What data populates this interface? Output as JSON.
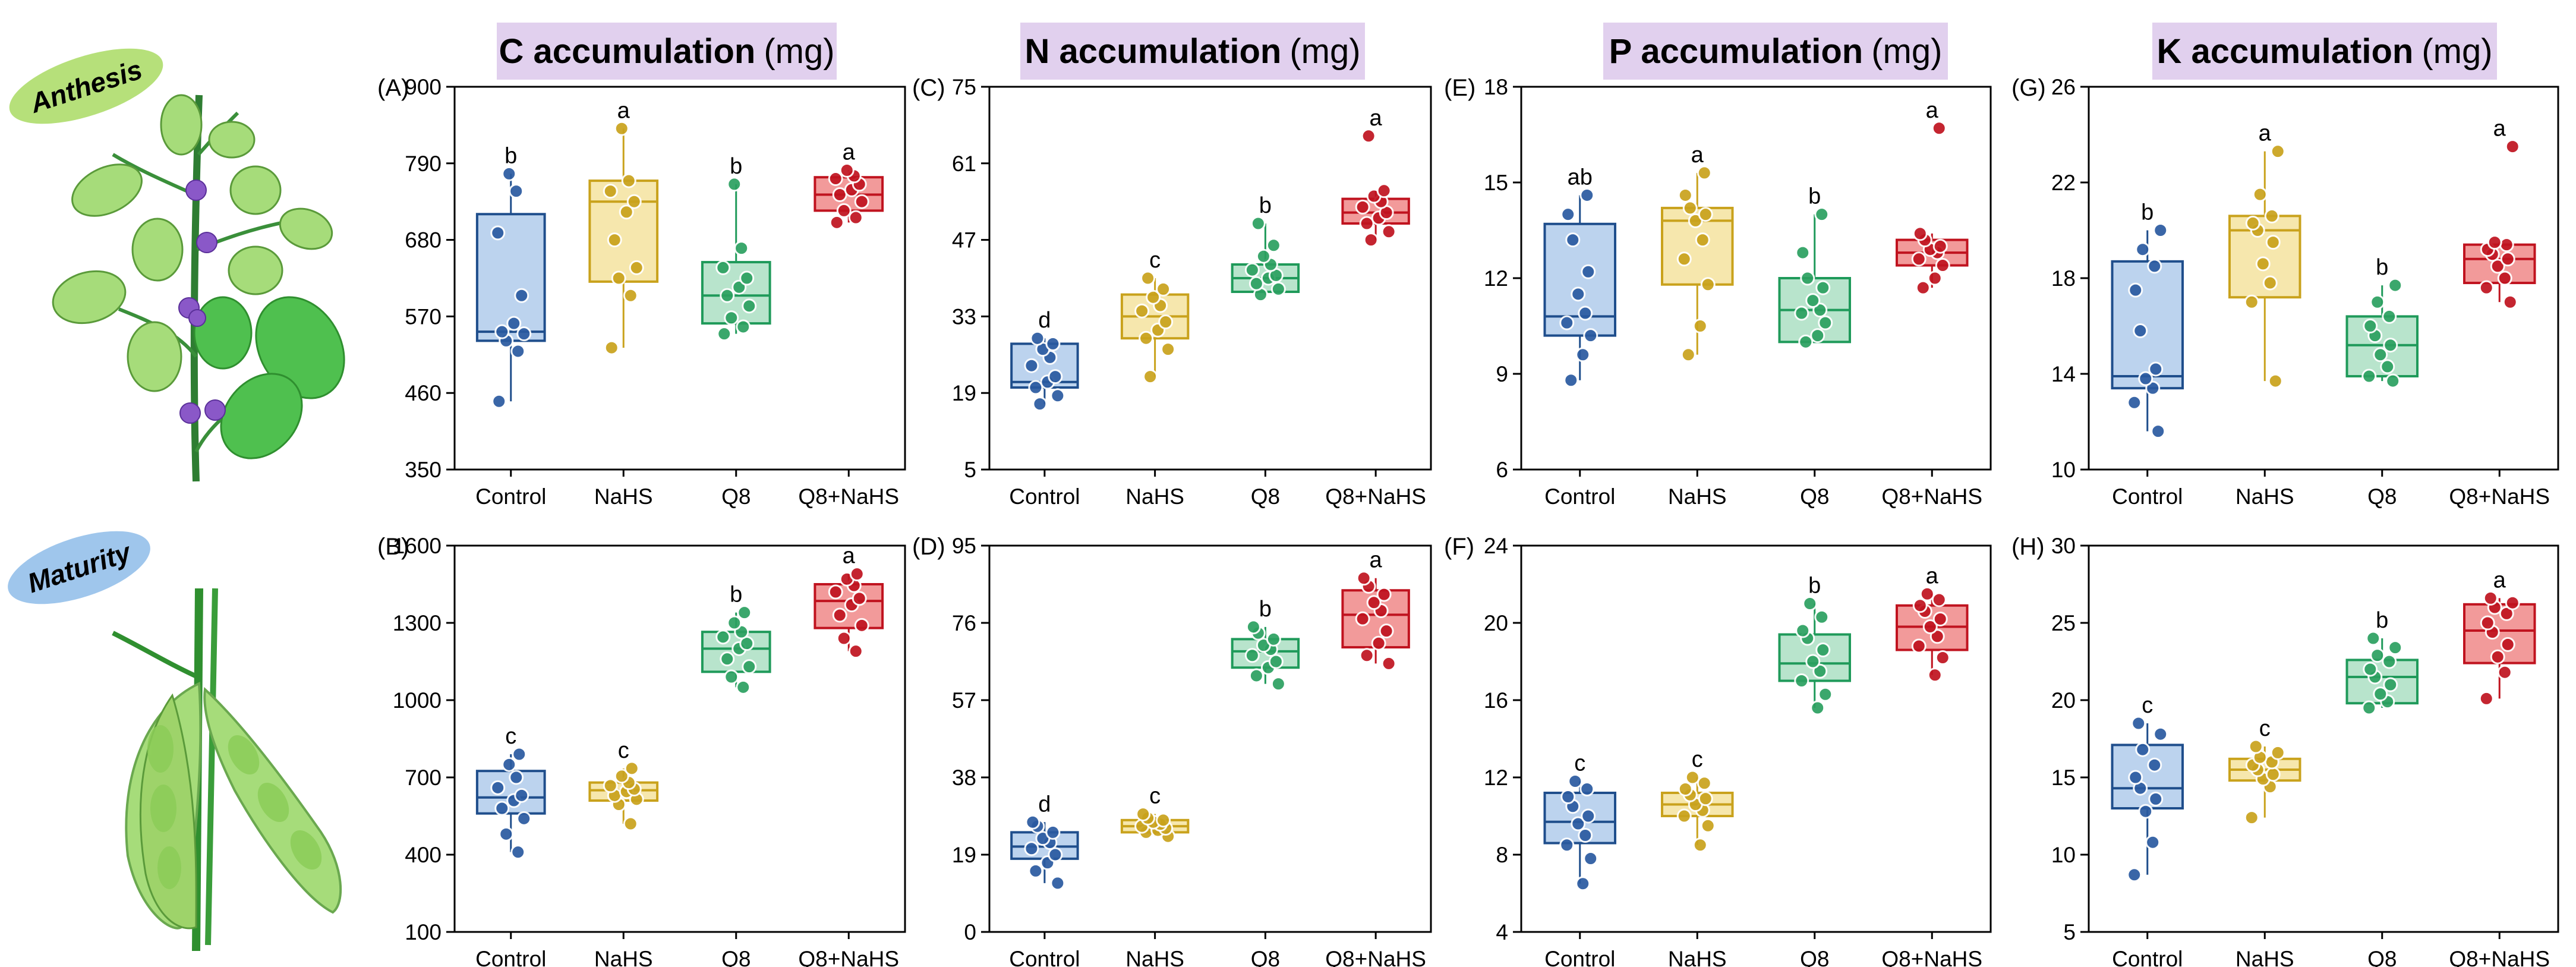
{
  "stages": {
    "top": "Anthesis",
    "bottom": "Maturity"
  },
  "headers": [
    {
      "element": "C accumulation",
      "unit": "(mg)"
    },
    {
      "element": "N accumulation",
      "unit": "(mg)"
    },
    {
      "element": "P accumulation",
      "unit": "(mg)"
    },
    {
      "element": "K accumulation",
      "unit": "(mg)"
    }
  ],
  "colors": {
    "Control": {
      "fill": "#bcd3ee",
      "stroke": "#1f4e8c",
      "dot": "#2a5aa0"
    },
    "NaHS": {
      "fill": "#f6e7ad",
      "stroke": "#c9a21c",
      "dot": "#c9a21c"
    },
    "Q8": {
      "fill": "#b8e4cc",
      "stroke": "#1f9a5a",
      "dot": "#2ba060"
    },
    "Q8+NaHS": {
      "fill": "#f29a9a",
      "stroke": "#c0131f",
      "dot": "#c0131f"
    },
    "header_bg": "#e1d0ee",
    "anthesis_bg": "#b6e07a",
    "maturity_bg": "#9fc6ec"
  },
  "chart_data": [
    {
      "id": "A",
      "panel_label": "(A)",
      "type": "boxplot",
      "stage": "Anthesis",
      "element": "C",
      "categories": [
        "Control",
        "NaHS",
        "Q8",
        "Q8+NaHS"
      ],
      "ylim": [
        350,
        900
      ],
      "yticks": [
        "350",
        "460",
        "570",
        "680",
        "790",
        "900"
      ],
      "groups": [
        {
          "name": "Control",
          "q1": 535,
          "median": 548,
          "q3": 717,
          "whisker_low": 448,
          "whisker_high": 775,
          "letter": "b",
          "points": [
            448,
            520,
            535,
            545,
            548,
            560,
            600,
            690,
            750,
            775
          ]
        },
        {
          "name": "NaHS",
          "q1": 620,
          "median": 735,
          "q3": 765,
          "whisker_low": 525,
          "whisker_high": 840,
          "letter": "a",
          "points": [
            525,
            600,
            625,
            640,
            680,
            720,
            735,
            750,
            765,
            840
          ]
        },
        {
          "name": "Q8",
          "q1": 560,
          "median": 600,
          "q3": 648,
          "whisker_low": 545,
          "whisker_high": 760,
          "letter": "b",
          "points": [
            545,
            555,
            568,
            585,
            600,
            612,
            625,
            640,
            668,
            760
          ]
        },
        {
          "name": "Q8+NaHS",
          "q1": 722,
          "median": 745,
          "q3": 770,
          "whisker_low": 705,
          "whisker_high": 780,
          "letter": "a",
          "points": [
            705,
            712,
            722,
            735,
            745,
            752,
            760,
            768,
            772,
            780
          ]
        }
      ]
    },
    {
      "id": "B",
      "panel_label": "(B)",
      "type": "boxplot",
      "stage": "Maturity",
      "element": "C",
      "categories": [
        "Control",
        "NaHS",
        "Q8",
        "Q8+NaHS"
      ],
      "ylim": [
        100,
        1600
      ],
      "yticks": [
        "100",
        "400",
        "700",
        "1000",
        "1300",
        "1600"
      ],
      "groups": [
        {
          "name": "Control",
          "q1": 560,
          "median": 622,
          "q3": 725,
          "whisker_low": 410,
          "whisker_high": 790,
          "letter": "c",
          "points": [
            410,
            480,
            540,
            580,
            610,
            630,
            660,
            700,
            750,
            790
          ]
        },
        {
          "name": "NaHS",
          "q1": 610,
          "median": 650,
          "q3": 680,
          "whisker_low": 520,
          "whisker_high": 735,
          "letter": "c",
          "points": [
            520,
            595,
            615,
            630,
            645,
            655,
            668,
            680,
            705,
            735
          ]
        },
        {
          "name": "Q8",
          "q1": 1110,
          "median": 1200,
          "q3": 1265,
          "whisker_low": 1050,
          "whisker_high": 1340,
          "letter": "b",
          "points": [
            1050,
            1090,
            1130,
            1160,
            1200,
            1220,
            1245,
            1265,
            1300,
            1340
          ]
        },
        {
          "name": "Q8+NaHS",
          "q1": 1280,
          "median": 1385,
          "q3": 1450,
          "whisker_low": 1190,
          "whisker_high": 1490,
          "letter": "a",
          "points": [
            1190,
            1240,
            1290,
            1330,
            1370,
            1395,
            1420,
            1445,
            1470,
            1490
          ]
        }
      ]
    },
    {
      "id": "C",
      "panel_label": "(C)",
      "type": "boxplot",
      "stage": "Anthesis",
      "element": "N",
      "categories": [
        "Control",
        "NaHS",
        "Q8",
        "Q8+NaHS"
      ],
      "ylim": [
        5,
        75
      ],
      "yticks": [
        "5",
        "19",
        "33",
        "47",
        "61",
        "75"
      ],
      "groups": [
        {
          "name": "Control",
          "q1": 20,
          "median": 21,
          "q3": 28,
          "whisker_low": 17,
          "whisker_high": 29,
          "letter": "d",
          "points": [
            17,
            18.5,
            20,
            21,
            22,
            24,
            25.5,
            27,
            28,
            29
          ]
        },
        {
          "name": "NaHS",
          "q1": 29,
          "median": 33,
          "q3": 37,
          "whisker_low": 22,
          "whisker_high": 40,
          "letter": "c",
          "points": [
            22,
            27,
            29,
            30.5,
            32,
            34,
            35,
            36.5,
            38,
            40
          ]
        },
        {
          "name": "Q8",
          "q1": 37.5,
          "median": 40,
          "q3": 42.5,
          "whisker_low": 37,
          "whisker_high": 50,
          "letter": "b",
          "points": [
            37,
            38,
            39,
            40,
            40.5,
            41.5,
            42.5,
            44,
            46,
            50
          ]
        },
        {
          "name": "Q8+NaHS",
          "q1": 50,
          "median": 52,
          "q3": 54.5,
          "whisker_low": 47,
          "whisker_high": 56,
          "letter": "a",
          "points": [
            47,
            48.5,
            50,
            51,
            52,
            53,
            54,
            55,
            56,
            66
          ]
        }
      ]
    },
    {
      "id": "D",
      "panel_label": "(D)",
      "type": "boxplot",
      "stage": "Maturity",
      "element": "N",
      "categories": [
        "Control",
        "NaHS",
        "Q8",
        "Q8+NaHS"
      ],
      "ylim": [
        0,
        95
      ],
      "yticks": [
        "0",
        "19",
        "38",
        "57",
        "76",
        "95"
      ],
      "groups": [
        {
          "name": "Control",
          "q1": 18,
          "median": 21,
          "q3": 24.5,
          "whisker_low": 12,
          "whisker_high": 27,
          "letter": "d",
          "points": [
            12,
            15,
            17,
            19,
            20.5,
            22,
            23,
            24.5,
            26,
            27
          ]
        },
        {
          "name": "NaHS",
          "q1": 24.5,
          "median": 26,
          "q3": 27.5,
          "whisker_low": 23.5,
          "whisker_high": 29,
          "letter": "c",
          "points": [
            23.5,
            24.5,
            25,
            25.5,
            26,
            26.5,
            27,
            27.5,
            28,
            29
          ]
        },
        {
          "name": "Q8",
          "q1": 65,
          "median": 69,
          "q3": 72,
          "whisker_low": 61,
          "whisker_high": 75,
          "letter": "b",
          "points": [
            61,
            63,
            65,
            66.5,
            68,
            69.5,
            70.5,
            72,
            73.5,
            75
          ]
        },
        {
          "name": "Q8+NaHS",
          "q1": 70,
          "median": 78,
          "q3": 84,
          "whisker_low": 66,
          "whisker_high": 87,
          "letter": "a",
          "points": [
            66,
            68,
            71,
            74,
            77,
            79,
            81,
            83,
            85,
            87
          ]
        }
      ]
    },
    {
      "id": "E",
      "panel_label": "(E)",
      "type": "boxplot",
      "stage": "Anthesis",
      "element": "P",
      "categories": [
        "Control",
        "NaHS",
        "Q8",
        "Q8+NaHS"
      ],
      "ylim": [
        6,
        18
      ],
      "yticks": [
        "6",
        "9",
        "12",
        "15",
        "18"
      ],
      "groups": [
        {
          "name": "Control",
          "q1": 10.2,
          "median": 10.8,
          "q3": 13.7,
          "whisker_low": 8.8,
          "whisker_high": 14.6,
          "letter": "ab",
          "points": [
            8.8,
            9.6,
            10.2,
            10.6,
            10.9,
            11.5,
            12.2,
            13.2,
            14.0,
            14.6
          ]
        },
        {
          "name": "NaHS",
          "q1": 11.8,
          "median": 13.8,
          "q3": 14.2,
          "whisker_low": 9.6,
          "whisker_high": 15.3,
          "letter": "a",
          "points": [
            9.6,
            10.5,
            11.8,
            12.6,
            13.2,
            13.8,
            14.0,
            14.2,
            14.6,
            15.3
          ]
        },
        {
          "name": "Q8",
          "q1": 10.0,
          "median": 11.0,
          "q3": 12.0,
          "whisker_low": 10.0,
          "whisker_high": 14.0,
          "letter": "b",
          "points": [
            10.0,
            10.2,
            10.6,
            10.9,
            11.0,
            11.3,
            11.7,
            12.0,
            12.8,
            14.0
          ]
        },
        {
          "name": "Q8+NaHS",
          "q1": 12.4,
          "median": 12.8,
          "q3": 13.2,
          "whisker_low": 11.7,
          "whisker_high": 13.4,
          "letter": "a",
          "points": [
            11.7,
            12.0,
            12.4,
            12.6,
            12.8,
            12.9,
            13.0,
            13.2,
            13.4,
            16.7
          ]
        }
      ]
    },
    {
      "id": "F",
      "panel_label": "(F)",
      "type": "boxplot",
      "stage": "Maturity",
      "element": "P",
      "categories": [
        "Control",
        "NaHS",
        "Q8",
        "Q8+NaHS"
      ],
      "ylim": [
        4,
        24
      ],
      "yticks": [
        "4",
        "8",
        "12",
        "16",
        "20",
        "24"
      ],
      "groups": [
        {
          "name": "Control",
          "q1": 8.6,
          "median": 9.7,
          "q3": 11.2,
          "whisker_low": 6.5,
          "whisker_high": 11.8,
          "letter": "c",
          "points": [
            6.5,
            7.8,
            8.5,
            9.0,
            9.6,
            10.0,
            10.5,
            11.0,
            11.4,
            11.8
          ]
        },
        {
          "name": "NaHS",
          "q1": 10.0,
          "median": 10.6,
          "q3": 11.2,
          "whisker_low": 8.5,
          "whisker_high": 12.0,
          "letter": "c",
          "points": [
            8.5,
            9.5,
            10.0,
            10.3,
            10.6,
            10.9,
            11.1,
            11.4,
            11.7,
            12.0
          ]
        },
        {
          "name": "Q8",
          "q1": 17.0,
          "median": 17.9,
          "q3": 19.4,
          "whisker_low": 15.6,
          "whisker_high": 21.0,
          "letter": "b",
          "points": [
            15.6,
            16.3,
            17.0,
            17.5,
            18.0,
            18.6,
            19.2,
            19.6,
            20.3,
            21.0
          ]
        },
        {
          "name": "Q8+NaHS",
          "q1": 18.6,
          "median": 19.8,
          "q3": 20.9,
          "whisker_low": 17.3,
          "whisker_high": 21.5,
          "letter": "a",
          "points": [
            17.3,
            18.2,
            18.8,
            19.3,
            19.8,
            20.2,
            20.6,
            20.9,
            21.2,
            21.5
          ]
        }
      ]
    },
    {
      "id": "G",
      "panel_label": "(G)",
      "type": "boxplot",
      "stage": "Anthesis",
      "element": "K",
      "categories": [
        "Control",
        "NaHS",
        "Q8",
        "Q8+NaHS"
      ],
      "ylim": [
        10,
        26
      ],
      "yticks": [
        "10",
        "14",
        "18",
        "22",
        "26"
      ],
      "groups": [
        {
          "name": "Control",
          "q1": 13.4,
          "median": 13.9,
          "q3": 18.7,
          "whisker_low": 11.6,
          "whisker_high": 20.0,
          "letter": "b",
          "points": [
            11.6,
            12.8,
            13.4,
            13.8,
            14.2,
            15.8,
            17.5,
            18.5,
            19.2,
            20.0
          ]
        },
        {
          "name": "NaHS",
          "q1": 17.2,
          "median": 20.0,
          "q3": 20.6,
          "whisker_low": 13.7,
          "whisker_high": 23.3,
          "letter": "a",
          "points": [
            13.7,
            17.0,
            17.8,
            18.6,
            19.5,
            20.0,
            20.3,
            20.6,
            21.5,
            23.3
          ]
        },
        {
          "name": "Q8",
          "q1": 13.9,
          "median": 15.2,
          "q3": 16.4,
          "whisker_low": 13.7,
          "whisker_high": 17.7,
          "letter": "b",
          "points": [
            13.7,
            13.9,
            14.3,
            14.8,
            15.2,
            15.6,
            16.0,
            16.4,
            17.0,
            17.7
          ]
        },
        {
          "name": "Q8+NaHS",
          "q1": 17.8,
          "median": 18.8,
          "q3": 19.4,
          "whisker_low": 17.0,
          "whisker_high": 19.5,
          "letter": "a",
          "points": [
            17.0,
            17.6,
            18.0,
            18.5,
            18.8,
            19.0,
            19.2,
            19.4,
            19.5,
            23.5
          ]
        }
      ]
    },
    {
      "id": "H",
      "panel_label": "(H)",
      "type": "boxplot",
      "stage": "Maturity",
      "element": "K",
      "categories": [
        "Control",
        "NaHS",
        "Q8",
        "Q8+NaHS"
      ],
      "ylim": [
        5,
        30
      ],
      "yticks": [
        "5",
        "10",
        "15",
        "20",
        "25",
        "30"
      ],
      "groups": [
        {
          "name": "Control",
          "q1": 13.0,
          "median": 14.3,
          "q3": 17.1,
          "whisker_low": 8.7,
          "whisker_high": 18.5,
          "letter": "c",
          "points": [
            8.7,
            10.8,
            12.8,
            13.6,
            14.3,
            15.0,
            15.8,
            16.8,
            17.8,
            18.5
          ]
        },
        {
          "name": "NaHS",
          "q1": 14.8,
          "median": 15.5,
          "q3": 16.2,
          "whisker_low": 12.4,
          "whisker_high": 17.0,
          "letter": "c",
          "points": [
            12.4,
            14.4,
            14.9,
            15.2,
            15.5,
            15.8,
            16.0,
            16.3,
            16.6,
            17.0
          ]
        },
        {
          "name": "Q8",
          "q1": 19.8,
          "median": 21.5,
          "q3": 22.6,
          "whisker_low": 19.5,
          "whisker_high": 24.0,
          "letter": "b",
          "points": [
            19.5,
            19.9,
            20.4,
            21.0,
            21.5,
            22.0,
            22.5,
            22.9,
            23.4,
            24.0
          ]
        },
        {
          "name": "Q8+NaHS",
          "q1": 22.4,
          "median": 24.5,
          "q3": 26.2,
          "whisker_low": 20.1,
          "whisker_high": 26.6,
          "letter": "a",
          "points": [
            20.1,
            21.8,
            22.8,
            23.6,
            24.4,
            25.0,
            25.6,
            26.0,
            26.3,
            26.6
          ]
        }
      ]
    }
  ]
}
